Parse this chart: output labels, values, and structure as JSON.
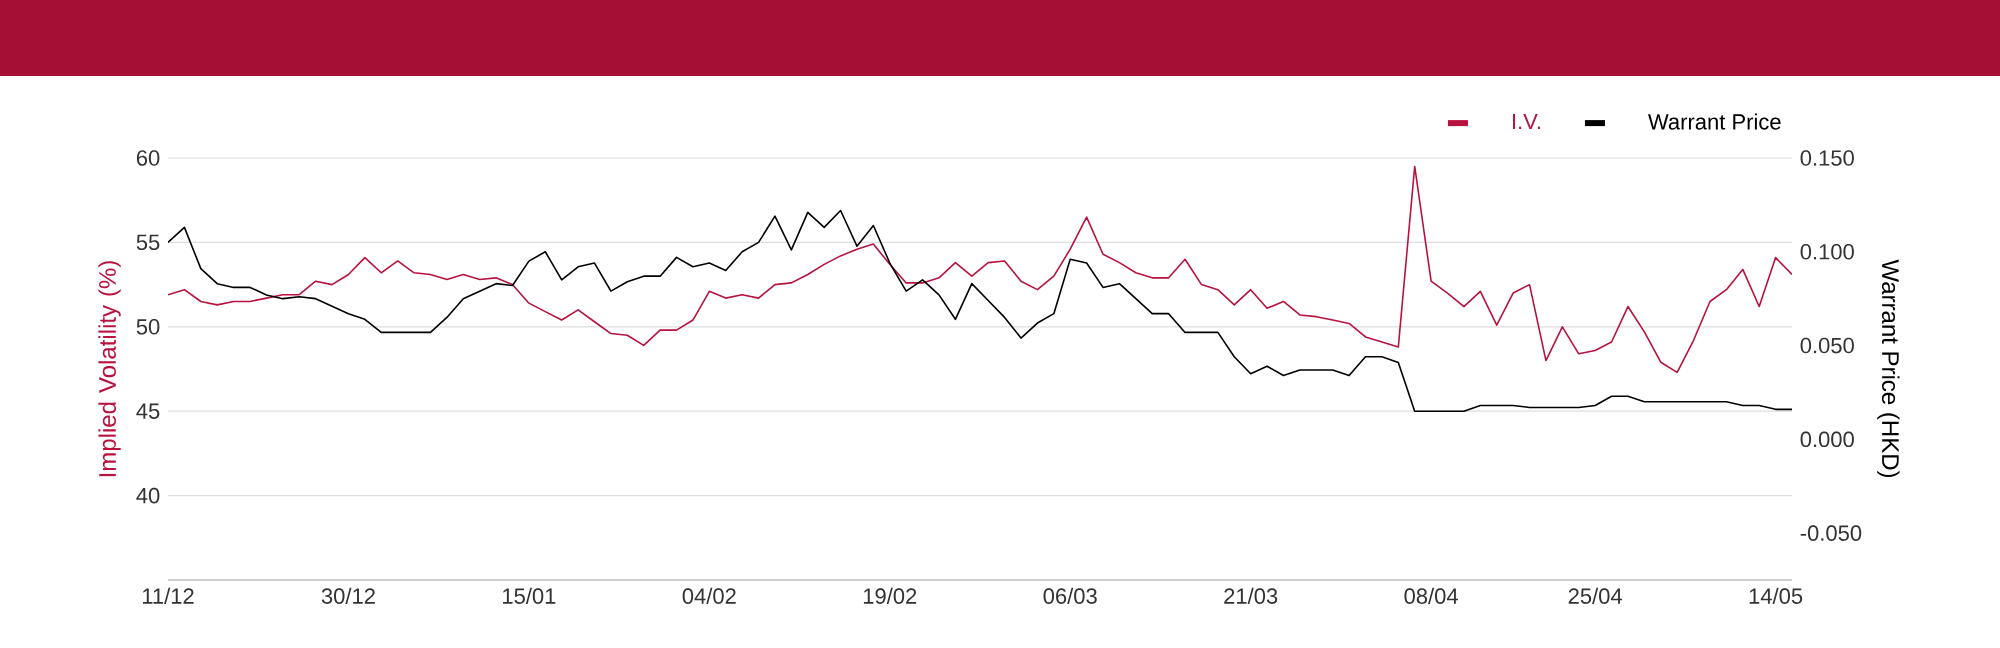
{
  "chart_data": {
    "type": "line",
    "ylabel": "Implied Volatility (%)",
    "y2label": "Warrant Price (HKD)",
    "categories": [
      "11/12",
      null,
      null,
      null,
      null,
      null,
      null,
      null,
      null,
      null,
      null,
      "30/12",
      null,
      null,
      null,
      null,
      null,
      null,
      null,
      null,
      null,
      null,
      "15/01",
      null,
      null,
      null,
      null,
      null,
      null,
      null,
      null,
      null,
      null,
      "04/02",
      null,
      null,
      null,
      null,
      null,
      null,
      null,
      null,
      null,
      null,
      "19/02",
      null,
      null,
      null,
      null,
      null,
      null,
      null,
      null,
      null,
      null,
      "06/03",
      null,
      null,
      null,
      null,
      null,
      null,
      null,
      null,
      null,
      null,
      "21/03",
      null,
      null,
      null,
      null,
      null,
      null,
      null,
      null,
      null,
      null,
      "08/04",
      null,
      null,
      null,
      null,
      null,
      null,
      null,
      null,
      null,
      "25/04",
      null,
      null,
      null,
      null,
      null,
      null,
      null,
      null,
      null,
      null,
      "14/05",
      null
    ],
    "series": [
      {
        "name": "I.V.",
        "color": "#b8123e",
        "values": [
          51.9,
          52.2,
          51.5,
          51.3,
          51.5,
          51.5,
          51.7,
          51.9,
          51.9,
          52.7,
          52.5,
          53.1,
          54.1,
          53.2,
          53.9,
          53.2,
          53.1,
          52.8,
          53.1,
          52.8,
          52.9,
          52.5,
          51.4,
          50.9,
          50.4,
          51.0,
          50.3,
          49.6,
          49.5,
          48.9,
          49.8,
          49.8,
          50.4,
          52.1,
          51.7,
          51.9,
          51.7,
          52.5,
          52.6,
          53.1,
          53.7,
          54.2,
          54.6,
          54.9,
          53.7,
          52.6,
          52.6,
          52.9,
          53.8,
          53.0,
          53.8,
          53.9,
          52.7,
          52.2,
          53.0,
          54.6,
          56.5,
          54.3,
          53.8,
          53.2,
          52.9,
          52.9,
          54.0,
          52.5,
          52.2,
          51.3,
          52.2,
          51.1,
          51.5,
          50.7,
          50.6,
          50.4,
          50.2,
          49.4,
          49.1,
          48.8,
          59.5,
          52.7,
          52.0,
          51.2,
          52.1,
          50.1,
          52.0,
          52.5,
          48.0,
          50.0,
          48.4,
          48.6,
          49.1,
          51.2,
          49.7,
          47.9,
          47.3,
          49.2,
          51.5,
          52.2,
          53.4,
          51.2,
          54.1,
          53.1
        ]
      },
      {
        "name": "Warrant Price",
        "color": "#000000",
        "axis": "y2",
        "values": [
          0.105,
          0.113,
          0.091,
          0.083,
          0.081,
          0.081,
          0.077,
          0.075,
          0.076,
          0.075,
          0.071,
          0.067,
          0.064,
          0.057,
          0.057,
          0.057,
          0.057,
          0.065,
          0.075,
          0.079,
          0.083,
          0.082,
          0.095,
          0.1,
          0.085,
          0.092,
          0.094,
          0.079,
          0.084,
          0.087,
          0.087,
          0.097,
          0.092,
          0.094,
          0.09,
          0.1,
          0.105,
          0.119,
          0.101,
          0.121,
          0.113,
          0.122,
          0.103,
          0.114,
          0.094,
          0.079,
          0.085,
          0.077,
          0.064,
          0.083,
          0.074,
          0.065,
          0.054,
          0.062,
          0.067,
          0.096,
          0.094,
          0.081,
          0.083,
          0.075,
          0.067,
          0.067,
          0.057,
          0.057,
          0.057,
          0.044,
          0.035,
          0.039,
          0.034,
          0.037,
          0.037,
          0.037,
          0.034,
          0.044,
          0.044,
          0.041,
          0.015,
          0.015,
          0.015,
          0.015,
          0.018,
          0.018,
          0.018,
          0.017,
          0.017,
          0.017,
          0.017,
          0.018,
          0.023,
          0.023,
          0.02,
          0.02,
          0.02,
          0.02,
          0.02,
          0.02,
          0.018,
          0.018,
          0.016,
          0.016
        ]
      }
    ],
    "ylim": [
      35,
      60
    ],
    "yticks": [
      40,
      45,
      50,
      55,
      60
    ],
    "y2lim": [
      -0.075,
      0.15
    ],
    "y2ticks": [
      {
        "value": -0.05,
        "label": "-0.050"
      },
      {
        "value": 0,
        "label": "0.000"
      },
      {
        "value": 0.05,
        "label": "0.050"
      },
      {
        "value": 0.1,
        "label": "0.100"
      },
      {
        "value": 0.15,
        "label": "0.150"
      }
    ],
    "grid": "y",
    "legend": "top right"
  }
}
